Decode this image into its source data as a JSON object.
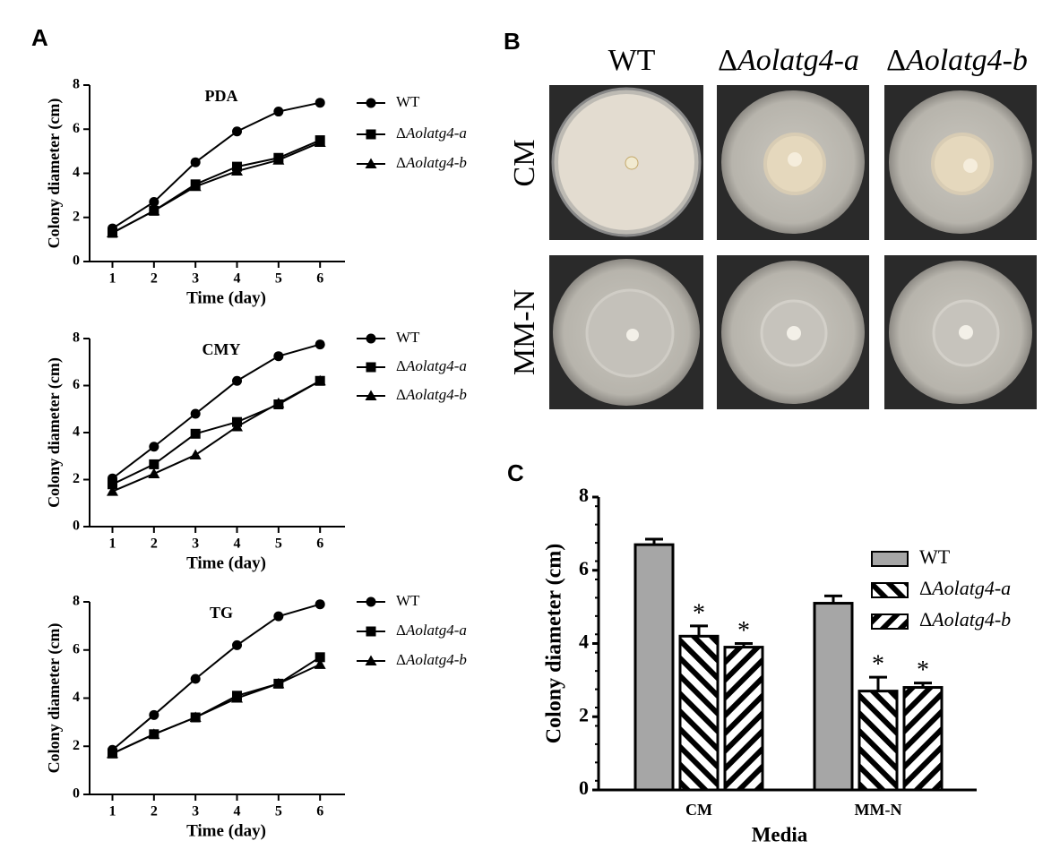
{
  "chart_data": [
    {
      "type": "line",
      "label": "A",
      "title": "PDA",
      "xlabel": "Time (day)",
      "ylabel": "Colony diameter (cm)",
      "x": [
        1,
        2,
        3,
        4,
        5,
        6
      ],
      "xlim": [
        0.45,
        6.6
      ],
      "xticks": [
        1,
        2,
        3,
        4,
        5,
        6
      ],
      "ylim": [
        0,
        8
      ],
      "yticks": [
        0,
        2,
        4,
        6,
        8
      ],
      "series": [
        {
          "name": "WT",
          "color": "#000000",
          "marker": "circle",
          "values": [
            1.5,
            2.7,
            4.5,
            5.9,
            6.8,
            7.2
          ]
        },
        {
          "name": "ΔAolatg4-a",
          "color": "#000000",
          "marker": "square",
          "values": [
            1.3,
            2.3,
            3.5,
            4.3,
            4.7,
            5.5
          ]
        },
        {
          "name": "ΔAolatg4-b",
          "color": "#000000",
          "marker": "triangle",
          "values": [
            1.3,
            2.3,
            3.4,
            4.1,
            4.6,
            5.4
          ]
        }
      ]
    },
    {
      "type": "line",
      "title": "CMY",
      "xlabel": "Time (day)",
      "ylabel": "Colony diameter (cm)",
      "x": [
        1,
        2,
        3,
        4,
        5,
        6
      ],
      "xlim": [
        0.45,
        6.6
      ],
      "xticks": [
        1,
        2,
        3,
        4,
        5,
        6
      ],
      "ylim": [
        0,
        8
      ],
      "yticks": [
        0,
        2,
        4,
        6,
        8
      ],
      "series": [
        {
          "name": "WT",
          "color": "#000000",
          "marker": "circle",
          "values": [
            2.05,
            3.4,
            4.8,
            6.2,
            7.25,
            7.75
          ]
        },
        {
          "name": "ΔAolatg4-a",
          "color": "#000000",
          "marker": "square",
          "values": [
            1.8,
            2.65,
            3.95,
            4.45,
            5.2,
            6.2
          ]
        },
        {
          "name": "ΔAolatg4-b",
          "color": "#000000",
          "marker": "triangle",
          "values": [
            1.5,
            2.25,
            3.05,
            4.25,
            5.25,
            6.2
          ]
        }
      ]
    },
    {
      "type": "line",
      "title": "TG",
      "xlabel": "Time (day)",
      "ylabel": "Colony diameter (cm)",
      "x": [
        1,
        2,
        3,
        4,
        5,
        6
      ],
      "xlim": [
        0.45,
        6.6
      ],
      "xticks": [
        1,
        2,
        3,
        4,
        5,
        6
      ],
      "ylim": [
        0,
        8
      ],
      "yticks": [
        0,
        2,
        4,
        6,
        8
      ],
      "series": [
        {
          "name": "WT",
          "color": "#000000",
          "marker": "circle",
          "values": [
            1.85,
            3.3,
            4.8,
            6.2,
            7.4,
            7.9
          ]
        },
        {
          "name": "ΔAolatg4-a",
          "color": "#000000",
          "marker": "square",
          "values": [
            1.7,
            2.5,
            3.2,
            4.1,
            4.6,
            5.7
          ]
        },
        {
          "name": "ΔAolatg4-b",
          "color": "#000000",
          "marker": "triangle",
          "values": [
            1.7,
            2.5,
            3.2,
            4.0,
            4.6,
            5.4
          ]
        }
      ]
    },
    {
      "type": "bar",
      "label": "C",
      "xlabel": "Media",
      "ylabel": "Colony diameter (cm)",
      "categories": [
        "CM",
        "MM-N"
      ],
      "ylim": [
        0,
        8
      ],
      "yticks": [
        0,
        2,
        4,
        6,
        8
      ],
      "series": [
        {
          "name": "WT",
          "color": "#a6a6a6",
          "values": [
            6.7,
            5.1
          ],
          "errors": [
            0.15,
            0.2
          ]
        },
        {
          "name": "ΔAolatg4-a",
          "color": "#000000",
          "hatch": "back",
          "values": [
            4.2,
            2.7
          ],
          "errors": [
            0.28,
            0.38
          ],
          "significance": [
            "*",
            "*"
          ]
        },
        {
          "name": "ΔAolatg4-b",
          "color": "#000000",
          "hatch": "forward",
          "values": [
            3.9,
            2.8
          ],
          "errors": [
            0.1,
            0.12
          ],
          "significance": [
            "*",
            "*"
          ]
        }
      ]
    }
  ],
  "photos": {
    "label": "B",
    "columns": [
      "WT",
      "ΔAolatg4-a",
      "ΔAolatg4-b"
    ],
    "rows": [
      "CM",
      "MM-N"
    ]
  }
}
